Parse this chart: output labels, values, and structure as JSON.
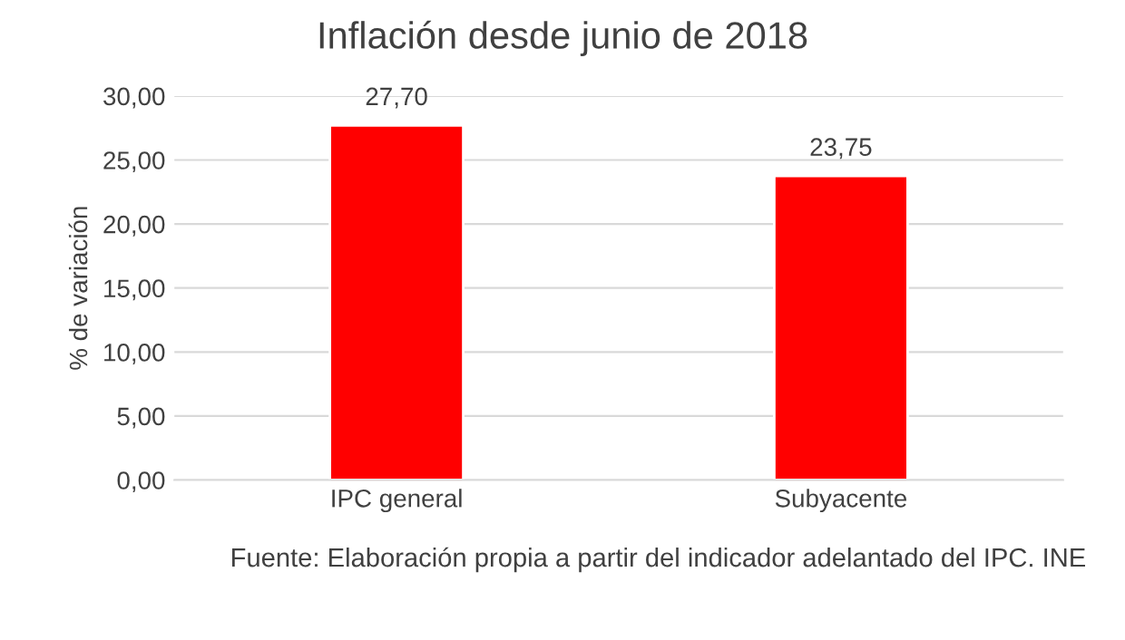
{
  "chart_data": {
    "type": "bar",
    "title": "Inflación desde junio de 2018",
    "ylabel": "% de variación",
    "categories": [
      "IPC general",
      "Subyacente"
    ],
    "values": [
      27.7,
      23.75
    ],
    "color": "#ff0000",
    "value_labels": [
      "27,70",
      "23,75"
    ],
    "ylim": [
      0,
      30
    ],
    "yticks": [
      {
        "value": 0,
        "label": "0,00"
      },
      {
        "value": 5,
        "label": "5,00"
      },
      {
        "value": 10,
        "label": "10,00"
      },
      {
        "value": 15,
        "label": "15,00"
      },
      {
        "value": 20,
        "label": "20,00"
      },
      {
        "value": 25,
        "label": "25,00"
      },
      {
        "value": 30,
        "label": "30,00"
      }
    ],
    "grid": "y",
    "legend": false,
    "annotations": [
      "Fuente: Elaboración propia a partir del indicador adelantado del IPC. INE"
    ]
  }
}
